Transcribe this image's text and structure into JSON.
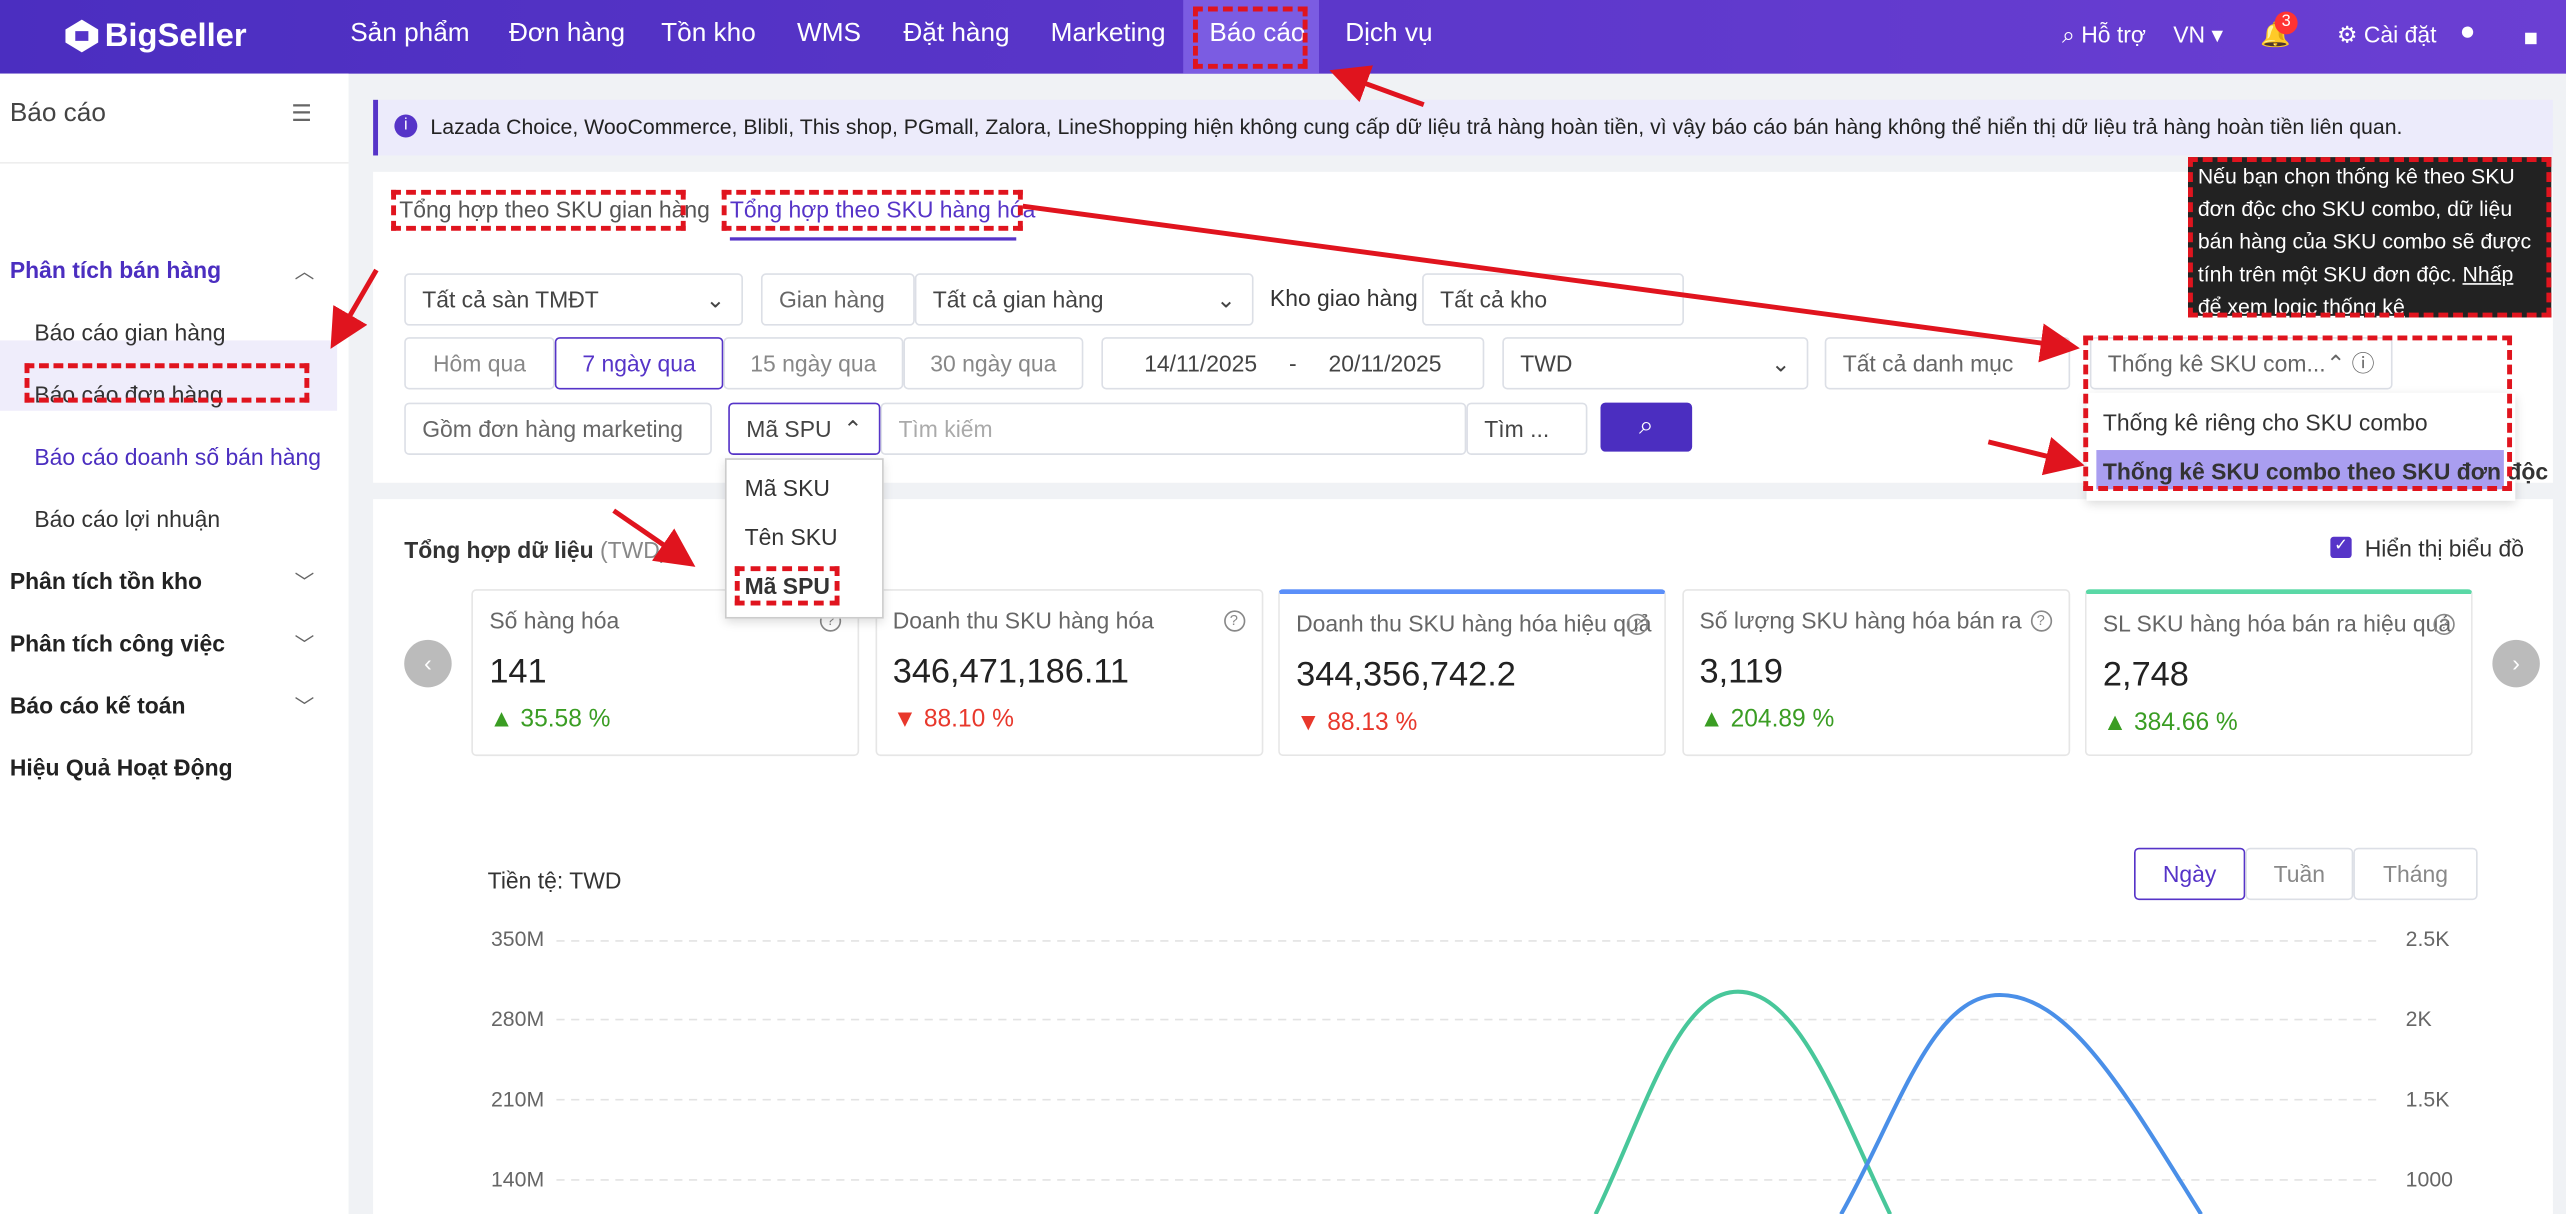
{
  "nav": {
    "brand": "BigSeller",
    "items": [
      "Sản phẩm",
      "Đơn hàng",
      "Tồn kho",
      "WMS",
      "Đặt hàng",
      "Marketing",
      "Báo cáo",
      "Dịch vụ"
    ],
    "support": "Hỗ trợ",
    "lang": "VN",
    "badge": "3",
    "settings": "Cài đặt"
  },
  "sidebar": {
    "title": "Báo cáo",
    "groups": [
      {
        "label": "Phân tích bán hàng",
        "items": [
          "Báo cáo gian hàng",
          "Báo cáo đơn hàng",
          "Báo cáo doanh số bán hàng",
          "Báo cáo lợi nhuận"
        ]
      },
      {
        "label": "Phân tích tồn kho"
      },
      {
        "label": "Phân tích công việc"
      },
      {
        "label": "Báo cáo kế toán"
      },
      {
        "label": "Hiệu Quả Hoạt Động"
      }
    ]
  },
  "notice": "Lazada Choice, WooCommerce, Blibli, This shop, PGmall, Zalora, LineShopping hiện không cung cấp dữ liệu trả hàng hoàn tiền, vì vậy báo cáo bán hàng không thể hiển thị dữ liệu trả hàng hoàn tiền liên quan.",
  "tabs": [
    "Tổng hợp theo SKU gian hàng",
    "Tổng hợp theo SKU hàng hóa"
  ],
  "tooltip": {
    "text": "Nếu bạn chọn thống kê theo SKU đơn độc cho SKU combo, dữ liệu bán hàng của SKU combo sẽ được tính trên một SKU đơn độc.",
    "link": "Nhấp để xem logic thống kê"
  },
  "filters": {
    "platform": "Tất cả sàn TMĐT",
    "shop_label": "Gian hàng",
    "shop": "Tất cả gian hàng",
    "warehouse_label": "Kho giao hàng",
    "warehouse": "Tất cả kho",
    "periods": [
      "Hôm qua",
      "7 ngày qua",
      "15 ngày qua",
      "30 ngày qua"
    ],
    "date_from": "14/11/2025",
    "date_sep": "-",
    "date_to": "20/11/2025",
    "currency": "TWD",
    "category": "Tất cả danh mục",
    "combo": "Thống kê SKU com...",
    "combo_options": [
      "Thống kê riêng cho SKU combo",
      "Thống kê SKU combo theo SKU đơn độc"
    ],
    "marketing": "Gồm đơn hàng marketing",
    "code": "Mã SPU",
    "code_options": [
      "Mã SKU",
      "Tên SKU",
      "Mã SPU"
    ],
    "search": "Tìm kiếm",
    "search_mode": "Tìm ..."
  },
  "summary": {
    "title": "Tổng hợp dữ liệu",
    "currency": "(TWD)",
    "show_chart": "Hiển thị biểu đồ",
    "cards": [
      {
        "label": "Số hàng hóa",
        "value": "141",
        "change": "35.58 %",
        "up": true
      },
      {
        "label": "Doanh thu SKU hàng hóa",
        "value": "346,471,186.11",
        "change": "88.10 %",
        "up": false
      },
      {
        "label": "Doanh thu SKU hàng hóa hiệu quả",
        "value": "344,356,742.2",
        "change": "88.13 %",
        "up": false
      },
      {
        "label": "Số lượng SKU hàng hóa bán ra",
        "value": "3,119",
        "change": "204.89 %",
        "up": true
      },
      {
        "label": "SL SKU hàng hóa bán ra hiệu quả",
        "value": "2,748",
        "change": "384.66 %",
        "up": true
      }
    ]
  },
  "chart": {
    "currency_label": "Tiền tệ:",
    "currency": "TWD",
    "periods": [
      "Ngày",
      "Tuần",
      "Tháng"
    ],
    "y_left": [
      "350M",
      "280M",
      "210M",
      "140M"
    ],
    "y_right": [
      "2.5K",
      "2K",
      "1.5K",
      "1000"
    ]
  }
}
